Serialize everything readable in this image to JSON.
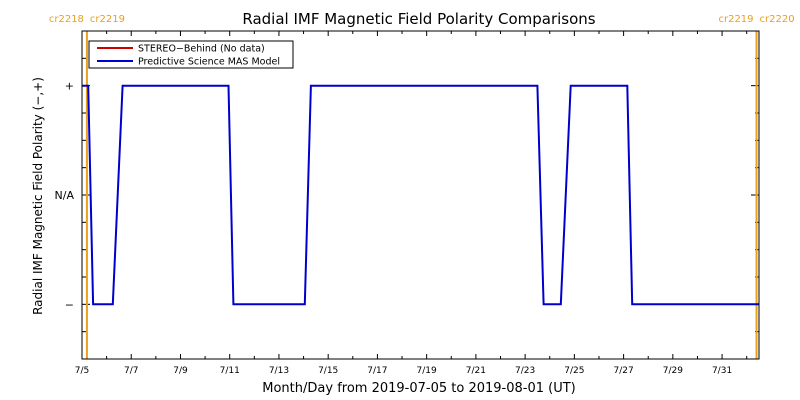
{
  "chart_data": {
    "type": "line",
    "title": "Radial IMF Magnetic Field Polarity Comparisons",
    "xlabel": "Month/Day from 2019-07-05 to 2019-08-01 (UT)",
    "ylabel": "Radial IMF Magnetic Field Polarity (−,+)",
    "xlim": [
      0,
      27.5
    ],
    "ylim": [
      -1.5,
      1.5
    ],
    "x_ticks": [
      {
        "x": 0,
        "label": "7/5"
      },
      {
        "x": 2,
        "label": "7/7"
      },
      {
        "x": 4,
        "label": "7/9"
      },
      {
        "x": 6,
        "label": "7/11"
      },
      {
        "x": 8,
        "label": "7/13"
      },
      {
        "x": 10,
        "label": "7/15"
      },
      {
        "x": 12,
        "label": "7/17"
      },
      {
        "x": 14,
        "label": "7/19"
      },
      {
        "x": 16,
        "label": "7/21"
      },
      {
        "x": 18,
        "label": "7/23"
      },
      {
        "x": 20,
        "label": "7/25"
      },
      {
        "x": 22,
        "label": "7/27"
      },
      {
        "x": 24,
        "label": "7/29"
      },
      {
        "x": 26,
        "label": "7/31"
      }
    ],
    "y_ticks": [
      {
        "y": 1,
        "label": "+"
      },
      {
        "y": 0,
        "label": "N/A"
      },
      {
        "y": -1,
        "label": "−"
      }
    ],
    "legend": {
      "placement": "top-left",
      "entries": [
        {
          "name": "STEREO−Behind (No data)",
          "color": "#cc0000"
        },
        {
          "name": "Predictive Science MAS Model",
          "color": "#0000cc"
        }
      ]
    },
    "series": [
      {
        "name": "Predictive Science MAS Model",
        "color": "#0000cc",
        "x": [
          0.0,
          0.25,
          0.45,
          1.25,
          1.65,
          5.95,
          6.15,
          9.05,
          9.3,
          18.5,
          18.75,
          19.45,
          19.85,
          22.15,
          22.35,
          27.5
        ],
        "values": [
          1,
          1,
          -1,
          -1,
          1,
          1,
          -1,
          -1,
          1,
          1,
          -1,
          -1,
          1,
          1,
          -1,
          -1
        ]
      }
    ],
    "carrington_markers": [
      {
        "x": 0.2,
        "left_label": "cr2218",
        "right_label": "cr2219",
        "color": "#e8a020"
      },
      {
        "x": 27.4,
        "left_label": "cr2219",
        "right_label": "cr2220",
        "color": "#e8a020"
      }
    ]
  }
}
